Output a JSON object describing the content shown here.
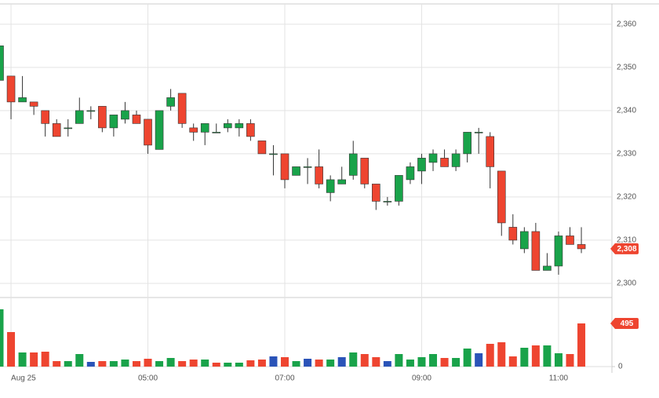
{
  "chart_data": {
    "type": "candlestick",
    "x": [
      null,
      "Aug 25",
      null,
      null,
      null,
      null,
      null,
      null,
      null,
      null,
      null,
      null,
      null,
      "05:00",
      null,
      null,
      null,
      null,
      null,
      null,
      null,
      null,
      null,
      null,
      null,
      "07:00",
      null,
      null,
      null,
      null,
      null,
      null,
      null,
      null,
      null,
      null,
      null,
      "09:00",
      null,
      null,
      null,
      null,
      null,
      null,
      null,
      null,
      null,
      null,
      null,
      "11:00",
      null,
      null
    ],
    "open": [
      2347,
      2348,
      2342,
      2342,
      2340,
      2337,
      2336,
      2337,
      2340,
      2341,
      2336,
      2338,
      2339,
      2338,
      2331,
      2341,
      2344,
      2336,
      2335,
      2335,
      2336,
      2336,
      2337,
      2333,
      2330,
      2330,
      2325,
      2327,
      2327,
      2321,
      2323,
      2325,
      2329,
      2323,
      2319,
      2319,
      2324,
      2326,
      2328,
      2329,
      2327,
      2330,
      2335,
      2334,
      2326,
      2313,
      2308,
      2312,
      2303,
      2304,
      2311,
      2309
    ],
    "high": [
      2357,
      2348,
      2348,
      2342,
      2340,
      2338,
      2338,
      2343,
      2341,
      2341,
      2339,
      2342,
      2340,
      2338,
      2340,
      2345,
      2344,
      2337,
      2337,
      2337,
      2338,
      2338,
      2338,
      2333,
      2332,
      2330,
      2327,
      2329,
      2331,
      2325,
      2327,
      2333,
      2329,
      2323,
      2320,
      2325,
      2328,
      2330,
      2331,
      2331,
      2331,
      2335,
      2336,
      2335,
      2326,
      2316,
      2313,
      2314,
      2307,
      2312,
      2313,
      2313
    ],
    "low": [
      2346,
      2338,
      2342,
      2339,
      2334,
      2334,
      2334,
      2337,
      2338,
      2335,
      2334,
      2337,
      2337,
      2330,
      2331,
      2340,
      2336,
      2333,
      2332,
      2335,
      2335,
      2334,
      2333,
      2330,
      2325,
      2322,
      2325,
      2323,
      2322,
      2319,
      2323,
      2324,
      2322,
      2317,
      2318,
      2318,
      2323,
      2323,
      2326,
      2327,
      2326,
      2328,
      2330,
      2322,
      2311,
      2309,
      2307,
      2303,
      2303,
      2302,
      2309,
      2307
    ],
    "close": [
      2355,
      2342,
      2343,
      2341,
      2337,
      2334,
      2336,
      2340,
      2340,
      2336,
      2339,
      2340,
      2337,
      2332,
      2340,
      2343,
      2337,
      2335,
      2337,
      2335,
      2337,
      2337,
      2334,
      2330,
      2330,
      2324,
      2327,
      2327,
      2323,
      2324,
      2324,
      2330,
      2323,
      2319,
      2319,
      2325,
      2327,
      2329,
      2330,
      2327,
      2330,
      2335,
      2335,
      2327,
      2314,
      2310,
      2312,
      2303,
      2304,
      2311,
      2309,
      2308
    ],
    "up_color": "#19a34a",
    "down_color": "#ee4530",
    "ylim": [
      2296.9,
      2364.7
    ],
    "yticks": [
      {
        "value": 2300,
        "label": "2,300"
      },
      {
        "value": 2310,
        "label": "2,310"
      },
      {
        "value": 2320,
        "label": "2,320"
      },
      {
        "value": 2330,
        "label": "2,330"
      },
      {
        "value": 2340,
        "label": "2,340"
      },
      {
        "value": 2350,
        "label": "2,350"
      },
      {
        "value": 2360,
        "label": "2,360"
      }
    ],
    "grid": true,
    "price_tag": {
      "value": 2308,
      "label": "2,308"
    },
    "volume": {
      "values": [
        657,
        396,
        162,
        162,
        171,
        63,
        63,
        144,
        54,
        63,
        63,
        81,
        63,
        90,
        63,
        99,
        63,
        81,
        81,
        45,
        45,
        45,
        72,
        81,
        117,
        108,
        63,
        90,
        81,
        81,
        108,
        162,
        144,
        108,
        63,
        144,
        81,
        108,
        144,
        99,
        99,
        207,
        153,
        261,
        279,
        117,
        216,
        243,
        243,
        153,
        144,
        495
      ],
      "colors": [
        "#19a34a",
        "#ee4530",
        "#19a34a",
        "#ee4530",
        "#ee4530",
        "#ee4530",
        "#19a34a",
        "#19a34a",
        "#2a53b8",
        "#ee4530",
        "#19a34a",
        "#19a34a",
        "#ee4530",
        "#ee4530",
        "#19a34a",
        "#19a34a",
        "#ee4530",
        "#ee4530",
        "#19a34a",
        "#ee4530",
        "#19a34a",
        "#19a34a",
        "#ee4530",
        "#ee4530",
        "#2a53b8",
        "#ee4530",
        "#19a34a",
        "#2a53b8",
        "#ee4530",
        "#19a34a",
        "#2a53b8",
        "#19a34a",
        "#ee4530",
        "#ee4530",
        "#2a53b8",
        "#19a34a",
        "#19a34a",
        "#19a34a",
        "#19a34a",
        "#ee4530",
        "#19a34a",
        "#19a34a",
        "#2a53b8",
        "#ee4530",
        "#ee4530",
        "#ee4530",
        "#19a34a",
        "#ee4530",
        "#19a34a",
        "#19a34a",
        "#ee4530",
        "#ee4530"
      ],
      "ylim": [
        0,
        783
      ],
      "yticks": [
        0
      ],
      "tag": 495
    }
  }
}
